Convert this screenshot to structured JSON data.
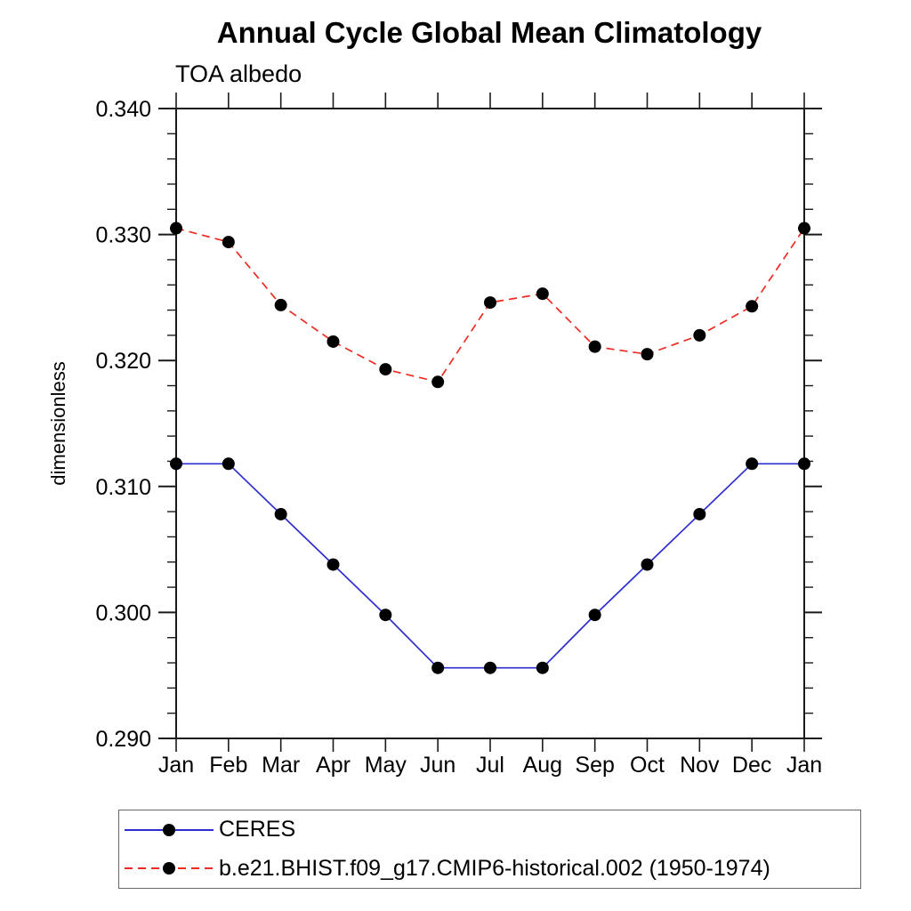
{
  "chart_data": {
    "type": "line",
    "title": "Annual Cycle Global Mean Climatology",
    "subtitle": "TOA albedo",
    "xlabel": "",
    "ylabel": "dimensionless",
    "categories": [
      "Jan",
      "Feb",
      "Mar",
      "Apr",
      "May",
      "Jun",
      "Jul",
      "Aug",
      "Sep",
      "Oct",
      "Nov",
      "Dec",
      "Jan"
    ],
    "ylim": [
      0.29,
      0.34
    ],
    "ytick_step": 0.01,
    "yminor_step": 0.002,
    "ytick_labels": [
      "0.290",
      "0.300",
      "0.310",
      "0.320",
      "0.330",
      "0.340"
    ],
    "grid": false,
    "legend_position": "bottom-left",
    "axis_color": "#1a1a1a",
    "text_color": "#000000",
    "background_color": "#ffffff",
    "series": [
      {
        "name": "CERES",
        "color": "#2e2ed0",
        "line_style": "solid",
        "marker": "circle",
        "marker_color": "#000000",
        "values": [
          0.3118,
          0.3118,
          0.3078,
          0.3038,
          0.2998,
          0.2956,
          0.2956,
          0.2956,
          0.2998,
          0.3038,
          0.3078,
          0.3118,
          0.3118
        ]
      },
      {
        "name": "b.e21.BHIST.f09_g17.CMIP6-historical.002 (1950-1974)",
        "color": "#ee2b22",
        "line_style": "dashed",
        "marker": "circle",
        "marker_color": "#000000",
        "values": [
          0.3305,
          0.3294,
          0.3244,
          0.3215,
          0.3193,
          0.3183,
          0.3246,
          0.3253,
          0.3211,
          0.3205,
          0.322,
          0.3243,
          0.3305
        ]
      }
    ]
  }
}
